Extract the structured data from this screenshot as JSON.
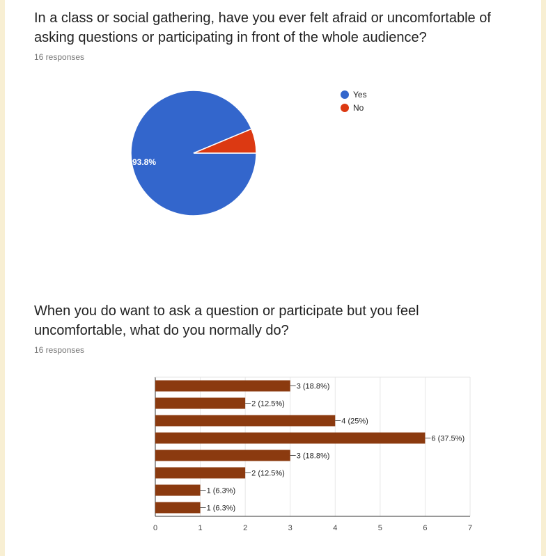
{
  "questions": [
    {
      "title": "In a class or social gathering, have you ever felt afraid or uncomfortable of asking questions or participating in front of the whole audience?",
      "responses": "16 responses"
    },
    {
      "title": "When you do want to ask a question or participate but you feel uncomfortable, what do you normally do?",
      "responses": "16 responses"
    }
  ],
  "chart_data": [
    {
      "type": "pie",
      "slices": [
        {
          "label": "Yes",
          "value": 93.8,
          "color": "#3366cc"
        },
        {
          "label": "No",
          "value": 6.3,
          "color": "#dc3912"
        }
      ],
      "slice_labels": [
        "93.8%"
      ],
      "legend_position": "right"
    },
    {
      "type": "bar",
      "orientation": "horizontal",
      "values": [
        3,
        2,
        4,
        6,
        3,
        2,
        1,
        1
      ],
      "data_labels": [
        "3 (18.8%)",
        "2 (12.5%)",
        "4 (25%)",
        "6 (37.5%)",
        "3 (18.8%)",
        "2 (12.5%)",
        "1 (6.3%)",
        "1 (6.3%)"
      ],
      "xlim": [
        0,
        7
      ],
      "xticks": [
        "0",
        "1",
        "2",
        "3",
        "4",
        "5",
        "6",
        "7"
      ],
      "bar_color": "#8b3a0f",
      "grid": true
    }
  ]
}
